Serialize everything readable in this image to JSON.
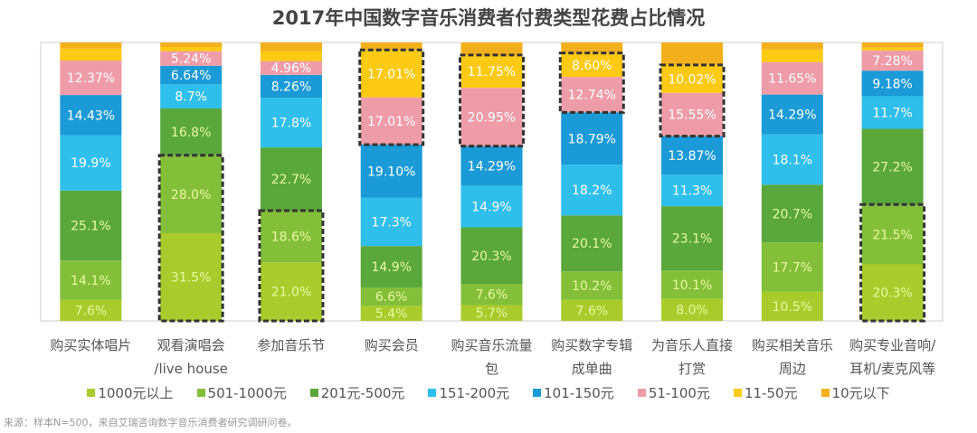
{
  "chart_data": {
    "type": "bar",
    "stacked": true,
    "percent": true,
    "title": "2017年中国数字音乐消费者付费类型花费占比情况",
    "categories": [
      [
        "购买实体唱片",
        ""
      ],
      [
        "观看演唱会",
        "/live house"
      ],
      [
        "参加音乐节",
        ""
      ],
      [
        "购买会员",
        ""
      ],
      [
        "购买音乐流量",
        "包"
      ],
      [
        "购买数字专辑",
        "成单曲"
      ],
      [
        "为音乐人直接",
        "打赏"
      ],
      [
        "购买相关音乐",
        "周边"
      ],
      [
        "购买专业音响/",
        "耳机/麦克风等"
      ]
    ],
    "ylim": [
      0,
      100
    ],
    "grid": false,
    "legend_position": "bottom",
    "series": [
      {
        "name": "1000元以上",
        "color": "#a9cc2c",
        "values": [
          7.6,
          31.5,
          21.0,
          5.4,
          5.7,
          7.6,
          8.0,
          10.5,
          20.3
        ],
        "labels": [
          "7.6%",
          "31.5%",
          "21.0%",
          "5.4%",
          "5.7%",
          "7.6%",
          "8.0%",
          "10.5%",
          "20.3%"
        ]
      },
      {
        "name": "501-1000元",
        "color": "#84bf3a",
        "values": [
          14.1,
          28.0,
          18.6,
          6.6,
          7.6,
          10.2,
          10.1,
          17.7,
          21.5
        ],
        "labels": [
          "14.1%",
          "28.0%",
          "18.6%",
          "6.6%",
          "7.6%",
          "10.2%",
          "10.1%",
          "17.7%",
          "21.5%"
        ]
      },
      {
        "name": "201元-500元",
        "color": "#5aa83c",
        "values": [
          25.1,
          16.8,
          22.7,
          14.9,
          20.3,
          20.1,
          23.1,
          20.7,
          27.2
        ],
        "labels": [
          "25.1%",
          "16.8%",
          "22.7%",
          "14.9%",
          "20.3%",
          "20.1%",
          "23.1%",
          "20.7%",
          "27.2%"
        ]
      },
      {
        "name": "151-200元",
        "color": "#2ebfea",
        "values": [
          19.9,
          8.7,
          17.8,
          17.3,
          14.9,
          18.2,
          11.3,
          18.1,
          11.7
        ],
        "labels": [
          "19.9%",
          "8.7%",
          "17.8%",
          "17.3%",
          "14.9%",
          "18.2%",
          "11.3%",
          "18.1%",
          "11.7%"
        ]
      },
      {
        "name": "101-150元",
        "color": "#1a9ad6",
        "values": [
          14.43,
          6.64,
          8.26,
          19.1,
          14.29,
          18.79,
          13.87,
          14.29,
          9.18
        ],
        "labels": [
          "14.43%",
          "6.64%",
          "8.26%",
          "19.10%",
          "14.29%",
          "18.79%",
          "13.87%",
          "14.29%",
          "9.18%"
        ]
      },
      {
        "name": "51-100元",
        "color": "#ee9ca8",
        "values": [
          12.37,
          5.24,
          4.96,
          17.01,
          20.95,
          12.74,
          15.55,
          11.65,
          7.28
        ],
        "labels": [
          "12.37%",
          "5.24%",
          "4.96%",
          "17.01%",
          "20.95%",
          "12.74%",
          "15.55%",
          "11.65%",
          "7.28%"
        ]
      },
      {
        "name": "11-50元",
        "color": "#fcca12",
        "values": [
          4.3,
          1.5,
          3.5,
          17.01,
          11.75,
          8.6,
          10.02,
          4.5,
          1.0
        ],
        "labels": [
          "",
          "",
          "",
          "17.01%",
          "11.75%",
          "8.60%",
          "10.02%",
          "",
          ""
        ]
      },
      {
        "name": "10元以下",
        "color": "#f4b01c",
        "values": [
          2.2,
          1.6,
          3.2,
          2.68,
          4.51,
          3.77,
          8.06,
          2.56,
          1.84
        ],
        "labels": [
          "",
          "",
          "",
          "",
          "",
          "",
          "",
          "",
          ""
        ]
      }
    ],
    "highlights": [
      {
        "category": 1,
        "series": [
          0,
          1
        ]
      },
      {
        "category": 2,
        "series": [
          0,
          1
        ]
      },
      {
        "category": 3,
        "series": [
          5,
          6
        ]
      },
      {
        "category": 4,
        "series": [
          5,
          6
        ]
      },
      {
        "category": 5,
        "series": [
          5,
          6
        ]
      },
      {
        "category": 6,
        "series": [
          5,
          6
        ]
      },
      {
        "category": 8,
        "series": [
          0,
          1
        ]
      }
    ]
  },
  "source": "来源：样本N=500，来自艾瑞咨询数字音乐消费者研究调研问卷。"
}
